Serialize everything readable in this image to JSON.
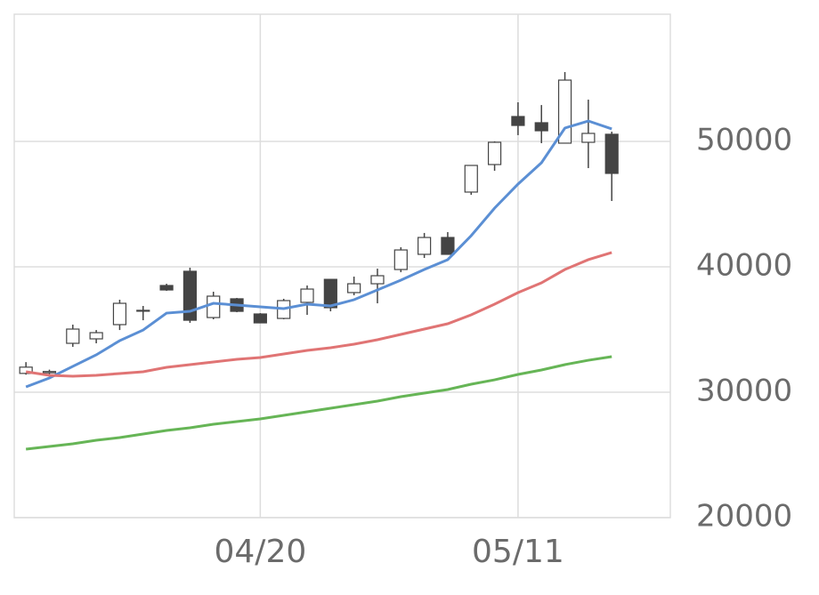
{
  "chart_data": {
    "type": "candlestick",
    "categories": [
      null,
      null,
      null,
      null,
      null,
      null,
      null,
      null,
      null,
      null,
      "04/20",
      null,
      null,
      null,
      null,
      null,
      null,
      null,
      null,
      null,
      null,
      "05/11",
      null,
      null,
      null,
      null
    ],
    "xlim": [
      -0.5,
      27.5
    ],
    "open": [
      31500,
      31550,
      33900,
      34255,
      35390,
      36460,
      38510,
      39645,
      35955,
      37450,
      36240,
      35885,
      37165,
      39000,
      37945,
      38650,
      39785,
      40995,
      42340,
      45960,
      48155,
      51985,
      51490,
      49860,
      49930,
      50570
    ],
    "high": [
      32400,
      31800,
      35390,
      34960,
      37375,
      36880,
      38650,
      39930,
      38015,
      37520,
      36310,
      37450,
      38510,
      39000,
      39220,
      39855,
      41560,
      42700,
      42770,
      48085,
      50000,
      53120,
      52900,
      55530,
      53330,
      50780
    ],
    "low": [
      31400,
      31350,
      33620,
      33900,
      34960,
      35740,
      38085,
      35530,
      35815,
      36380,
      35530,
      35815,
      36170,
      36450,
      37730,
      37090,
      39570,
      40710,
      40995,
      45740,
      47660,
      50500,
      49860,
      49860,
      47870,
      45250
    ],
    "close": [
      32000,
      31650,
      35035,
      34750,
      37090,
      36530,
      38155,
      35740,
      37660,
      36450,
      35530,
      37305,
      38225,
      36740,
      38650,
      39290,
      41345,
      42340,
      40995,
      48085,
      49930,
      51275,
      50850,
      54890,
      50640,
      47450
    ],
    "up_color": "#ffffff",
    "down_color": "#444444",
    "candle_stroke": "#444444",
    "lines": [
      {
        "color": "#5b8fd4",
        "values": [
          30425,
          31135,
          32060,
          32980,
          34110,
          34960,
          36310,
          36450,
          37090,
          36950,
          36810,
          36670,
          37020,
          36880,
          37375,
          38155,
          38935,
          39785,
          40570,
          42480,
          44680,
          46595,
          48300,
          51065,
          51630,
          50995
        ]
      },
      {
        "color": "#e07474",
        "values": [
          31630,
          31350,
          31275,
          31350,
          31490,
          31630,
          31985,
          32200,
          32410,
          32625,
          32765,
          33050,
          33330,
          33545,
          33830,
          34185,
          34610,
          35035,
          35460,
          36170,
          37020,
          37945,
          38720,
          39785,
          40570,
          41135
        ]
      },
      {
        "color": "#66b556",
        "values": [
          25460,
          25675,
          25885,
          26170,
          26380,
          26665,
          26950,
          27165,
          27445,
          27660,
          27870,
          28155,
          28440,
          28725,
          29005,
          29290,
          29645,
          29930,
          30215,
          30640,
          30990,
          31420,
          31775,
          32200,
          32550,
          32840
        ]
      }
    ],
    "ylim": [
      20000,
      60000
    ],
    "yticks": [
      20000,
      30000,
      40000,
      50000
    ],
    "grid": true
  }
}
